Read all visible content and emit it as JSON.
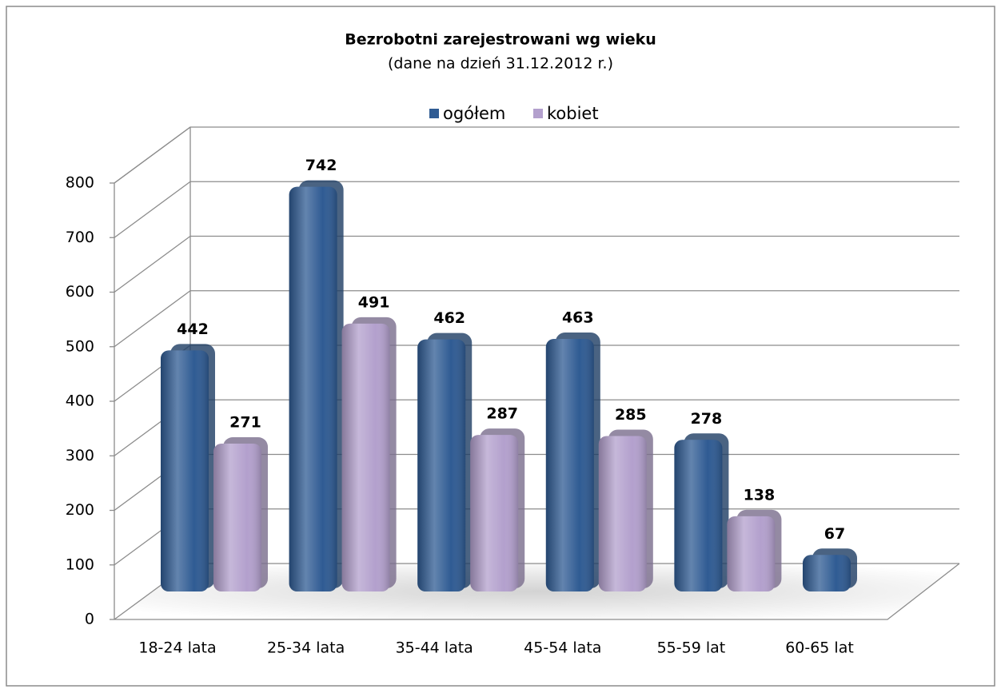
{
  "chart_data": {
    "type": "bar",
    "title": "Bezrobotni zarejestrowani wg wieku",
    "subtitle": "(dane na dzień 31.12.2012 r.)",
    "categories": [
      "18-24 lata",
      "25-34 lata",
      "35-44 lata",
      "45-54 lata",
      "55-59 lat",
      "60-65 lat"
    ],
    "series": [
      {
        "name": "ogółem",
        "color": "#2f5b93",
        "values": [
          442,
          742,
          462,
          463,
          278,
          67
        ]
      },
      {
        "name": "kobiet",
        "color": "#b3a0cd",
        "values": [
          271,
          491,
          287,
          285,
          138,
          null
        ]
      }
    ],
    "ylim": [
      0,
      800
    ],
    "yticks": [
      0,
      100,
      200,
      300,
      400,
      500,
      600,
      700,
      800
    ],
    "grid": true,
    "legend": "top"
  }
}
